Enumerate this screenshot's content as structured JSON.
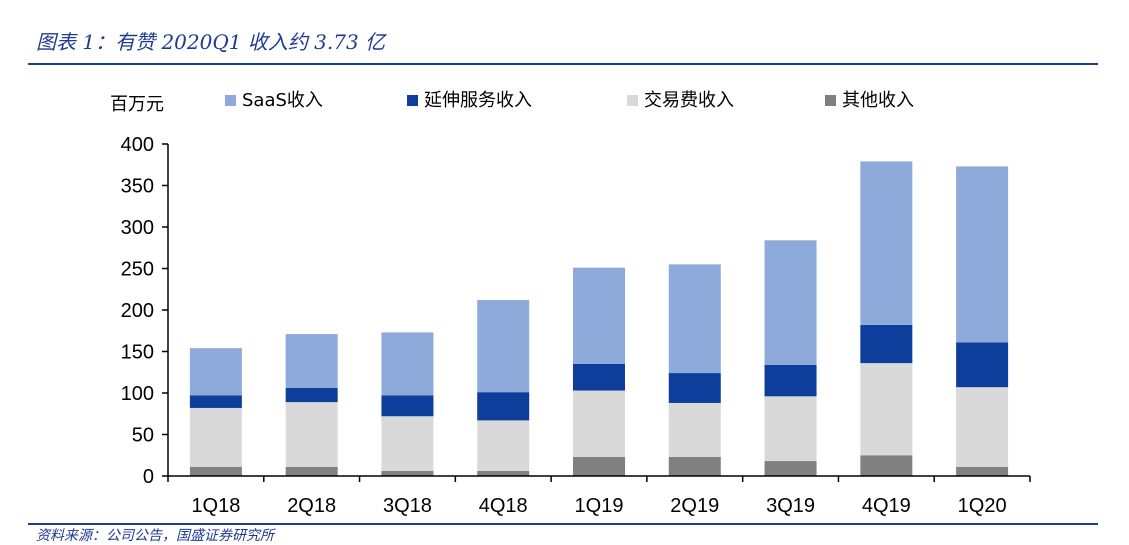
{
  "header": {
    "title": "图表 1：有赞 2020Q1 收入约 3.73 亿",
    "source": "资料来源：公司公告，国盛证券研究所"
  },
  "colors": {
    "saas": "#8eaadb",
    "ext": "#0d3e9c",
    "trade": "#d9d9d9",
    "other": "#808080",
    "axis": "#000000",
    "rule": "#1f3a93"
  },
  "chart_data": {
    "type": "bar",
    "stacked": true,
    "unit_label": "百万元",
    "categories": [
      "1Q18",
      "2Q18",
      "3Q18",
      "4Q18",
      "1Q19",
      "2Q19",
      "3Q19",
      "4Q19",
      "1Q20"
    ],
    "series": [
      {
        "name": "其他收入",
        "color_key": "other",
        "values": [
          11,
          11,
          6,
          6,
          23,
          23,
          18,
          25,
          11
        ]
      },
      {
        "name": "交易费收入",
        "color_key": "trade",
        "values": [
          71,
          78,
          66,
          61,
          80,
          65,
          78,
          111,
          96
        ]
      },
      {
        "name": "延伸服务收入",
        "color_key": "ext",
        "values": [
          15,
          17,
          25,
          34,
          32,
          36,
          38,
          46,
          54
        ]
      },
      {
        "name": "SaaS收入",
        "color_key": "saas",
        "values": [
          57,
          65,
          76,
          111,
          116,
          131,
          150,
          197,
          212
        ]
      }
    ],
    "legend_order": [
      "SaaS收入",
      "延伸服务收入",
      "交易费收入",
      "其他收入"
    ],
    "legend_position": "top",
    "ylim": [
      0,
      400
    ],
    "yticks": [
      0,
      50,
      100,
      150,
      200,
      250,
      300,
      350,
      400
    ],
    "grid": false
  }
}
